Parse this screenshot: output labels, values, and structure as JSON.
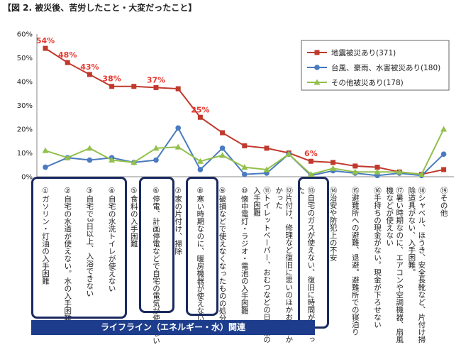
{
  "figure": {
    "title": "【図 2. 被災後、苦労したこと・大変だったこと】"
  },
  "chart_data": {
    "type": "line",
    "ylim": [
      0,
      60
    ],
    "yticks": [
      "0%",
      "10%",
      "20%",
      "30%",
      "40%",
      "50%",
      "60%"
    ],
    "grid": false,
    "legend_position": "top-right",
    "categories": [
      "①ガソリン・灯油の入手困難",
      "②自宅の水道が使えない。水の入手困難",
      "③自宅で3日以上、入浴できない",
      "④自宅の水洗トイレが使えない",
      "⑤食料の入手困難",
      "⑥停電、計画停電などで自宅の電気が使えない",
      "⑦家の片付け、掃除",
      "⑧寒い時期なのに、暖房機器が使えない",
      "⑨破損などで使えなくなったものの処分",
      "⑩懐中電灯・ラジオ・電池の入手困難",
      "⑪トイレットペーパー、おむつなどの日用品の入手困難",
      "⑫片付け、修理など復旧に思いのほかお金がかかった",
      "⑬自宅のガスが使えない、復旧に時間がかかった",
      "⑭治安や防犯上の不安",
      "⑮避難所への避難、退避。避難所での寝泊り",
      "⑯手持ちの現金がない。現金が下ろせない",
      "⑰暑い時期なのに、エアコンや空調機器、扇風機などが使えない",
      "⑱シャベル、ほうき、安全長靴など、片付け掃除道具がない、入手困難。",
      "⑲その他"
    ],
    "series": [
      {
        "name": "地震被災あり(371)",
        "color": "#c0392b",
        "values": [
          54,
          48,
          43,
          38,
          38,
          37.5,
          37,
          25,
          18.5,
          13,
          12,
          10,
          6.5,
          6,
          4.5,
          4,
          2,
          1,
          3
        ],
        "labels": [
          "54%",
          "48%",
          "43%",
          "38%",
          "",
          "37%",
          "",
          "25%",
          "",
          "",
          "",
          "",
          "6%",
          "",
          "",
          "",
          "",
          "",
          ""
        ]
      },
      {
        "name": "台風、豪雨、水害被災あり(180)",
        "color": "#4a7bbf",
        "values": [
          4,
          8,
          7,
          8,
          6,
          7,
          20.5,
          3,
          12,
          1,
          1.5,
          9.5,
          0.5,
          2.5,
          1.5,
          0.5,
          1.5,
          0.5,
          9.5
        ],
        "labels": []
      },
      {
        "name": "その他被災あり(178)",
        "color": "#92c04b",
        "values": [
          11,
          8,
          12,
          7,
          6,
          12,
          12.5,
          6.5,
          9,
          4,
          3,
          9.5,
          1,
          3.5,
          2,
          2,
          2,
          1,
          20
        ],
        "labels": []
      }
    ],
    "group_label": "ライフライン（エネルギー・水）関連"
  }
}
